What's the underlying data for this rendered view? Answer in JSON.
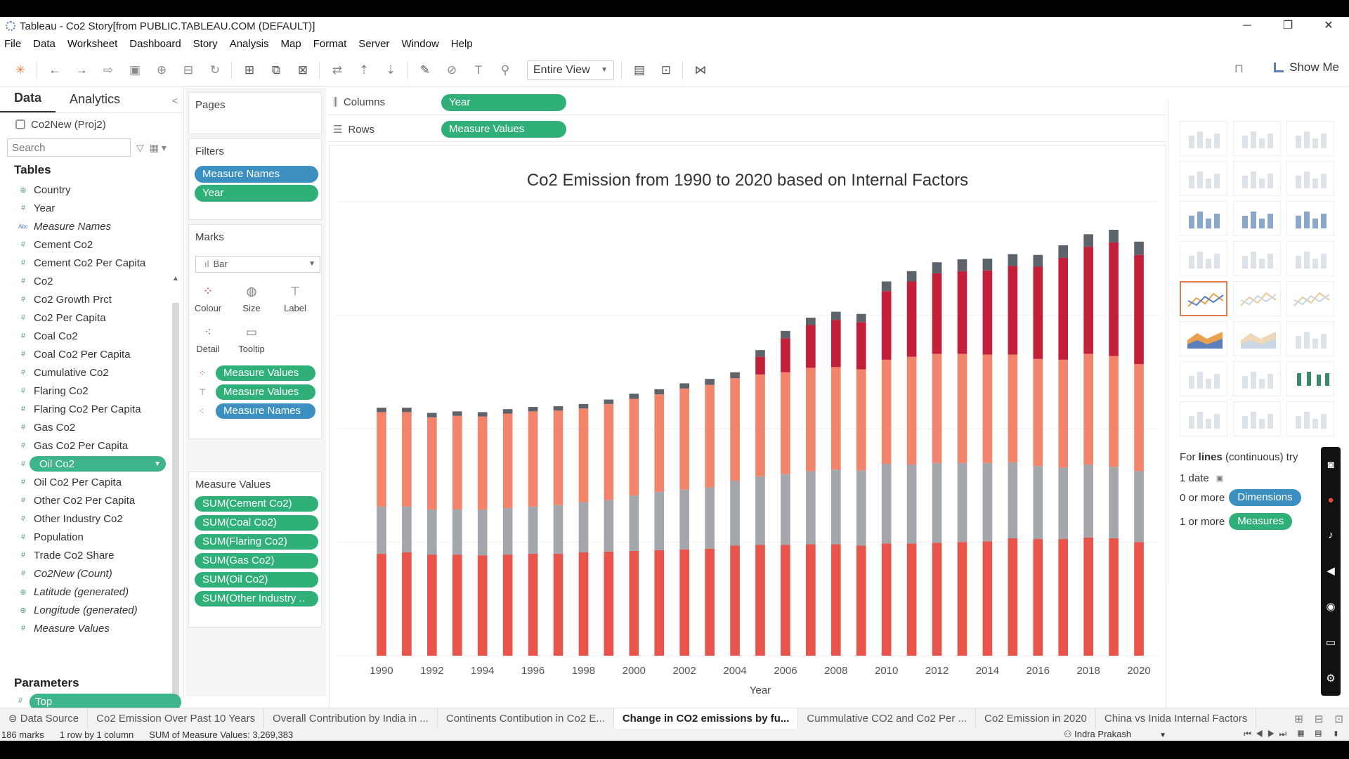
{
  "window": {
    "title": "Tableau - Co2 Story[from PUBLIC.TABLEAU.COM (DEFAULT)]"
  },
  "menu": [
    "File",
    "Data",
    "Worksheet",
    "Dashboard",
    "Story",
    "Analysis",
    "Map",
    "Format",
    "Server",
    "Window",
    "Help"
  ],
  "toolbar": {
    "view_mode": "Entire View",
    "show_me": "Show Me"
  },
  "data_pane": {
    "tabs": [
      "Data",
      "Analytics"
    ],
    "datasource": "Co2New (Proj2)",
    "search_placeholder": "Search",
    "tables_header": "Tables",
    "fields": [
      {
        "label": "Country",
        "type": "geo",
        "italic": false
      },
      {
        "label": "Year",
        "type": "#",
        "italic": false
      },
      {
        "label": "Measure Names",
        "type": "Abc",
        "italic": true
      },
      {
        "label": "Cement Co2",
        "type": "#",
        "italic": false
      },
      {
        "label": "Cement Co2 Per Capita",
        "type": "#",
        "italic": false
      },
      {
        "label": "Co2",
        "type": "#",
        "italic": false
      },
      {
        "label": "Co2 Growth Prct",
        "type": "#",
        "italic": false
      },
      {
        "label": "Co2 Per Capita",
        "type": "#",
        "italic": false
      },
      {
        "label": "Coal Co2",
        "type": "#",
        "italic": false
      },
      {
        "label": "Coal Co2 Per Capita",
        "type": "#",
        "italic": false
      },
      {
        "label": "Cumulative Co2",
        "type": "#",
        "italic": false
      },
      {
        "label": "Flaring Co2",
        "type": "#",
        "italic": false
      },
      {
        "label": "Flaring Co2 Per Capita",
        "type": "#",
        "italic": false
      },
      {
        "label": "Gas Co2",
        "type": "#",
        "italic": false
      },
      {
        "label": "Gas Co2 Per Capita",
        "type": "#",
        "italic": false
      },
      {
        "label": "Oil Co2",
        "type": "#",
        "italic": false,
        "selected": true
      },
      {
        "label": "Oil Co2 Per Capita",
        "type": "#",
        "italic": false
      },
      {
        "label": "Other Co2 Per Capita",
        "type": "#",
        "italic": false
      },
      {
        "label": "Other Industry Co2",
        "type": "#",
        "italic": false
      },
      {
        "label": "Population",
        "type": "#",
        "italic": false
      },
      {
        "label": "Trade Co2 Share",
        "type": "#",
        "italic": false
      },
      {
        "label": "Co2New (Count)",
        "type": "#",
        "italic": true
      },
      {
        "label": "Latitude (generated)",
        "type": "geo",
        "italic": true
      },
      {
        "label": "Longitude (generated)",
        "type": "geo",
        "italic": true
      },
      {
        "label": "Measure Values",
        "type": "#",
        "italic": true
      }
    ],
    "parameters_header": "Parameters",
    "parameter": "Top"
  },
  "cards": {
    "pages": "Pages",
    "filters": {
      "title": "Filters",
      "pills": [
        "Measure Names",
        "Year"
      ]
    },
    "marks": {
      "title": "Marks",
      "type": "Bar",
      "buttons": [
        "Colour",
        "Size",
        "Label",
        "Detail",
        "Tooltip"
      ],
      "pills": [
        "Measure Values",
        "Measure Values",
        "Measure Names"
      ]
    },
    "measure_values": {
      "title": "Measure Values",
      "pills": [
        "SUM(Cement Co2)",
        "SUM(Coal Co2)",
        "SUM(Flaring Co2)",
        "SUM(Gas Co2)",
        "SUM(Oil Co2)",
        "SUM(Other Industry .."
      ]
    }
  },
  "shelves": {
    "columns_label": "Columns",
    "columns_pill": "Year",
    "rows_label": "Rows",
    "rows_pill": "Measure Values"
  },
  "chart_data": {
    "type": "bar",
    "title": "Co2 Emission  from 1990 to 2020 based on Internal Factors",
    "xlabel": "Year",
    "x_tick_labels": [
      "1990",
      "1992",
      "1994",
      "1996",
      "1998",
      "2000",
      "2002",
      "2004",
      "2006",
      "2008",
      "2010",
      "2012",
      "2014",
      "2016",
      "2018",
      "2020"
    ],
    "categories": [
      1990,
      1991,
      1992,
      1993,
      1994,
      1995,
      1996,
      1997,
      1998,
      1999,
      2000,
      2001,
      2002,
      2003,
      2004,
      2005,
      2006,
      2007,
      2008,
      2009,
      2010,
      2011,
      2012,
      2013,
      2014,
      2015,
      2016,
      2017,
      2018,
      2019,
      2020
    ],
    "stacked": true,
    "y_axis_visible": false,
    "series": [
      {
        "color": "#e8534a",
        "values": [
          138,
          140,
          137,
          137,
          136,
          137,
          138,
          138,
          140,
          141,
          142,
          143,
          144,
          145,
          149,
          150,
          150,
          151,
          151,
          149,
          152,
          152,
          153,
          154,
          155,
          159,
          158,
          158,
          160,
          159,
          154
        ]
      },
      {
        "color": "#a3a7ab",
        "values": [
          64,
          62,
          61,
          61,
          62,
          63,
          64,
          66,
          68,
          70,
          75,
          79,
          81,
          83,
          88,
          93,
          96,
          99,
          101,
          102,
          108,
          107,
          108,
          107,
          106,
          103,
          99,
          97,
          99,
          97,
          96
        ]
      },
      {
        "color": "#f3846c",
        "values": [
          128,
          128,
          125,
          127,
          126,
          128,
          129,
          128,
          127,
          130,
          131,
          132,
          137,
          139,
          139,
          138,
          138,
          140,
          139,
          137,
          141,
          146,
          148,
          148,
          147,
          146,
          145,
          146,
          150,
          150,
          145
        ]
      },
      {
        "color": "#c41f3a",
        "values": [
          0,
          0,
          0,
          0,
          0,
          0,
          0,
          0,
          0,
          0,
          0,
          0,
          0,
          0,
          0,
          24,
          46,
          58,
          64,
          64,
          93,
          102,
          109,
          112,
          114,
          120,
          125,
          138,
          145,
          154,
          148
        ]
      },
      {
        "color": "#5c636a",
        "values": [
          6,
          6,
          6,
          6,
          6,
          6,
          6,
          6,
          6,
          6,
          7,
          7,
          7,
          8,
          8,
          9,
          10,
          10,
          11,
          11,
          13,
          14,
          15,
          16,
          16,
          16,
          16,
          17,
          17,
          17,
          18
        ]
      }
    ]
  },
  "show_me": {
    "hint_prefix": "For ",
    "hint_bold": "lines",
    "hint_suffix": " (continuous) try",
    "row1": "1 date",
    "row2_prefix": "0 or more",
    "row2_pill": "Dimensions",
    "row3_prefix": "1 or more",
    "row3_pill": "Measures"
  },
  "sheet_tabs": [
    "Data Source",
    "Co2 Emission Over Past 10 Years",
    "Overall Contribution by India in ...",
    "Continents Contibution in Co2 E...",
    "Change in CO2 emissions by fu...",
    "Cummulative CO2 and Co2 Per ...",
    "Co2 Emission in 2020",
    "China vs Inida Internal Factors"
  ],
  "active_tab": 4,
  "status": {
    "marks": "186 marks",
    "grid": "1 row by 1 column",
    "sum": "SUM of Measure Values: 3,269,383",
    "user": "Indra Prakash"
  }
}
